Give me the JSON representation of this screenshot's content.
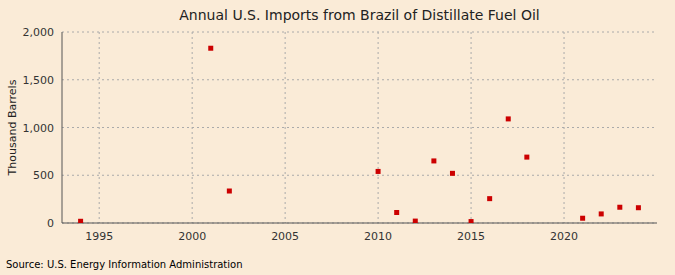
{
  "chart_data": {
    "type": "scatter",
    "title": "Annual U.S. Imports from Brazil of Distillate Fuel Oil",
    "y_label": "Thousand Barrels",
    "source": "Source: U.S. Energy Information Administration",
    "x": [
      1994,
      2001,
      2002,
      2010,
      2011,
      2012,
      2013,
      2014,
      2015,
      2016,
      2017,
      2018,
      2021,
      2022,
      2023,
      2024
    ],
    "values": [
      18,
      1830,
      335,
      540,
      110,
      20,
      650,
      520,
      15,
      255,
      1090,
      690,
      50,
      95,
      165,
      160
    ],
    "color": "#cc0000",
    "marker": "square",
    "xlim": [
      1993,
      2025
    ],
    "ylim": [
      0,
      2000
    ],
    "xticks": [
      1995,
      2000,
      2005,
      2010,
      2015,
      2020
    ],
    "yticks": [
      0,
      500,
      {
        "value": 1000,
        "label": "1,000"
      },
      {
        "value": 1500,
        "label": "1,500"
      },
      {
        "value": 2000,
        "label": "2,000"
      }
    ],
    "grid": true
  }
}
